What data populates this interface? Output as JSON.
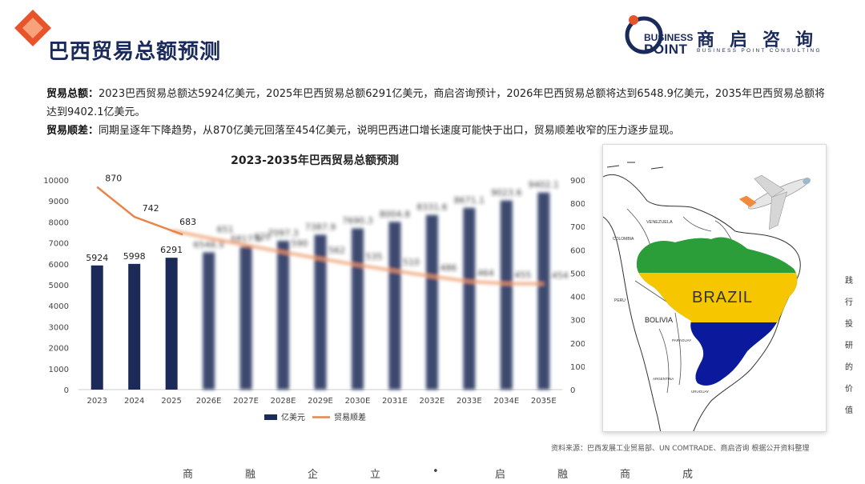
{
  "page": {
    "title": "巴西贸易总额预测"
  },
  "logo": {
    "en_line1": "BUSINESS",
    "en_line2": "POINT",
    "cn": "商启咨询",
    "sub": "BUSINESS POINT CONSULTING"
  },
  "description": {
    "total_label": "贸易总额：",
    "total_text": "2023巴西贸易总额达5924亿美元，2025年巴西贸易总额6291亿美元，商启咨询预计，2026年巴西贸易总额将达到6548.9亿美元，2035年巴西贸易总额将达到9402.1亿美元。",
    "balance_label": "贸易顺差：",
    "balance_text": "同期呈逐年下降趋势，从870亿美元回落至454亿美元，说明巴西进口增长速度可能快于出口，贸易顺差收窄的压力逐步显现。"
  },
  "chart_data": {
    "type": "bar",
    "title": "2023-2035年巴西贸易总额预测",
    "categories": [
      "2023",
      "2024",
      "2025",
      "2026E",
      "2027E",
      "2028E",
      "2029E",
      "2030E",
      "2031E",
      "2032E",
      "2033E",
      "2034E",
      "2035E"
    ],
    "series": [
      {
        "name": "亿美元",
        "type": "bar",
        "axis": "left",
        "color": "#1b2a57",
        "values": [
          5924,
          5998,
          6291,
          6548.9,
          6817.6,
          7097.3,
          7387.9,
          7690.3,
          8004.8,
          8331.6,
          8671.1,
          9023.6,
          9402.1
        ],
        "labels": [
          "5924",
          "5998",
          "6291",
          "6548.9",
          "6817.6",
          "7097.3",
          "7387.9",
          "7690.3",
          "8004.8",
          "8331.6",
          "8671.1",
          "9023.6",
          "9402.1"
        ]
      },
      {
        "name": "贸易顺差",
        "type": "line",
        "axis": "right",
        "color": "#e8854a",
        "values": [
          870,
          742,
          683,
          651,
          620,
          590,
          562,
          535,
          510,
          486,
          464,
          455,
          454
        ],
        "labels": [
          "870",
          "742",
          "683",
          "651",
          "620",
          "590",
          "562",
          "535",
          "510",
          "486",
          "464",
          "455",
          "454"
        ]
      }
    ],
    "y_left": {
      "min": 0,
      "max": 10000,
      "ticks": [
        0,
        1000,
        2000,
        3000,
        4000,
        5000,
        6000,
        7000,
        8000,
        9000,
        10000
      ]
    },
    "y_right": {
      "min": 0,
      "max": 900,
      "ticks": [
        0,
        100,
        200,
        300,
        400,
        500,
        600,
        700,
        800,
        900
      ]
    },
    "grid": false,
    "legend_position": "bottom",
    "blurred_from_index": 3
  },
  "map": {
    "country_label": "BRAZIL",
    "neighbor_labels": [
      "VENEZUELA",
      "COLOMBIA",
      "PERU",
      "BOLIVIA",
      "PARAGUAY",
      "ARGENTINA",
      "URUGUAY"
    ]
  },
  "source": "资料来源：巴西发展工业贸易部、UN COMTRADE、商启咨询 根据公开资料整理",
  "footer_slogan": [
    "商",
    "融",
    "企",
    "立",
    "•",
    "启",
    "融",
    "商",
    "成"
  ],
  "side_text": [
    "践",
    "行",
    "投",
    "研",
    "的",
    "价",
    "值"
  ]
}
